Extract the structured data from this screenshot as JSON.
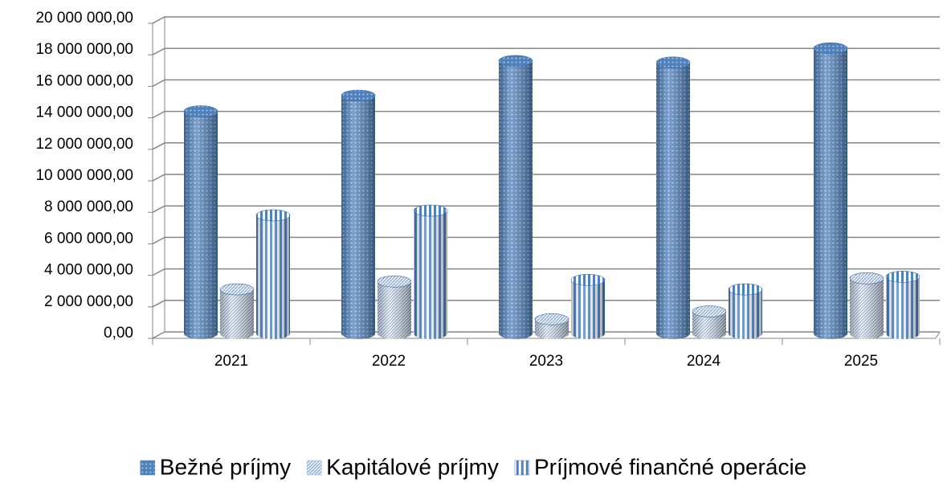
{
  "chart_data": {
    "type": "bar3d",
    "categories": [
      "2021",
      "2022",
      "2023",
      "2024",
      "2025"
    ],
    "series": [
      {
        "name": "Bežné príjmy",
        "color": "#4f81bd",
        "pattern": "dots",
        "values": [
          14000000,
          15000000,
          17200000,
          17100000,
          18000000
        ]
      },
      {
        "name": "Kapitálové príjmy",
        "color": "#95b3d7",
        "pattern": "weave",
        "values": [
          2700000,
          3200000,
          800000,
          1300000,
          3400000
        ]
      },
      {
        "name": "Príjmové finančné operácie",
        "color": "#4f81bd",
        "pattern": "stripes",
        "values": [
          7400000,
          7700000,
          3300000,
          2700000,
          3500000
        ]
      }
    ],
    "ylim": [
      0,
      20000000
    ],
    "yticks": [
      {
        "value": 0,
        "label": "0,00"
      },
      {
        "value": 2000000,
        "label": "2 000 000,00"
      },
      {
        "value": 4000000,
        "label": "4 000 000,00"
      },
      {
        "value": 6000000,
        "label": "6 000 000,00"
      },
      {
        "value": 8000000,
        "label": "8 000 000,00"
      },
      {
        "value": 10000000,
        "label": "10 000 000,00"
      },
      {
        "value": 12000000,
        "label": "12 000 000,00"
      },
      {
        "value": 14000000,
        "label": "14 000 000,00"
      },
      {
        "value": 16000000,
        "label": "16 000 000,00"
      },
      {
        "value": 18000000,
        "label": "18 000 000,00"
      },
      {
        "value": 20000000,
        "label": "20 000 000,00"
      }
    ],
    "grid": true,
    "legend": "bottom"
  }
}
